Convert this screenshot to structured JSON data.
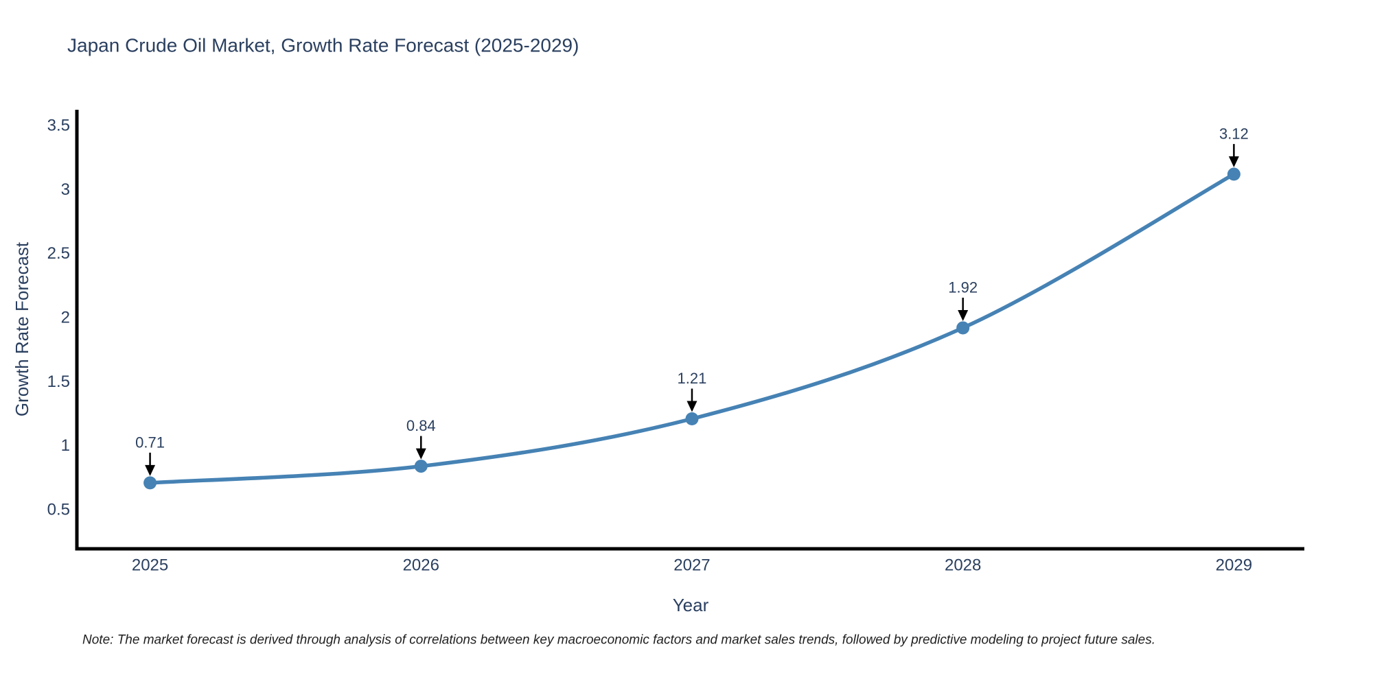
{
  "chart_data": {
    "type": "line",
    "title": "Japan Crude Oil Market, Growth Rate Forecast (2025-2029)",
    "xlabel": "Year",
    "ylabel": "Growth Rate Forecast",
    "x": [
      2025,
      2026,
      2027,
      2028,
      2029
    ],
    "x_tick_labels": [
      "2025",
      "2026",
      "2027",
      "2028",
      "2029"
    ],
    "series": [
      {
        "name": "Growth Rate Forecast",
        "values": [
          0.71,
          0.84,
          1.21,
          1.92,
          3.12
        ]
      }
    ],
    "point_annotations": [
      "0.71",
      "0.84",
      "1.21",
      "1.92",
      "3.12"
    ],
    "y_ticks": [
      0.5,
      1,
      1.5,
      2,
      2.5,
      3,
      3.5
    ],
    "xlim": [
      2024.73,
      2029.26
    ],
    "ylim": [
      0.195,
      3.623
    ],
    "grid": false,
    "legend_position": "none",
    "line_shape": "spline",
    "colors": {
      "line": "#4682b4",
      "marker": "#4682b4",
      "axis_line": "#000000",
      "text": "#2a3f5f",
      "annotation_arrow": "#000000",
      "background": "#ffffff"
    }
  },
  "footnote": {
    "text": "Note: The market forecast is derived through analysis of correlations between key macroeconomic factors and market sales trends, followed by predictive modeling to project future sales."
  }
}
